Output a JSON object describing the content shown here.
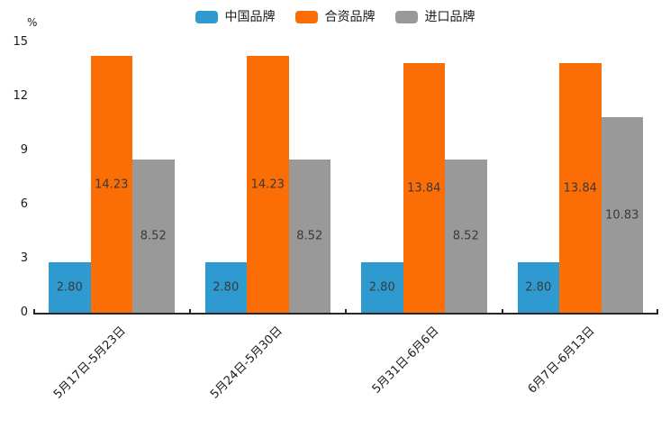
{
  "chart_data": {
    "type": "bar",
    "title": "",
    "xlabel": "",
    "ylabel": "%",
    "ylim": [
      0,
      15
    ],
    "yticks": [
      "0",
      "3",
      "6",
      "9",
      "12",
      "15"
    ],
    "grid": false,
    "legend_position": "top",
    "axis_color": "#262626",
    "categories": [
      "5月17日-5月23日",
      "5月24日-5月30日",
      "5月31日-6月6日",
      "6月7日-6月13日"
    ],
    "series": [
      {
        "name": "中国品牌",
        "color": "#2e9ad0",
        "values": [
          2.8,
          2.8,
          2.8,
          2.8
        ],
        "labels": [
          "2.80",
          "2.80",
          "2.80",
          "2.80"
        ]
      },
      {
        "name": "合资品牌",
        "color": "#fb6d05",
        "values": [
          14.23,
          14.23,
          13.84,
          13.84
        ],
        "labels": [
          "14.23",
          "14.23",
          "13.84",
          "13.84"
        ]
      },
      {
        "name": "进口品牌",
        "color": "#999999",
        "values": [
          8.52,
          8.52,
          8.52,
          10.83
        ],
        "labels": [
          "8.52",
          "8.52",
          "8.52",
          "10.83"
        ]
      }
    ]
  }
}
